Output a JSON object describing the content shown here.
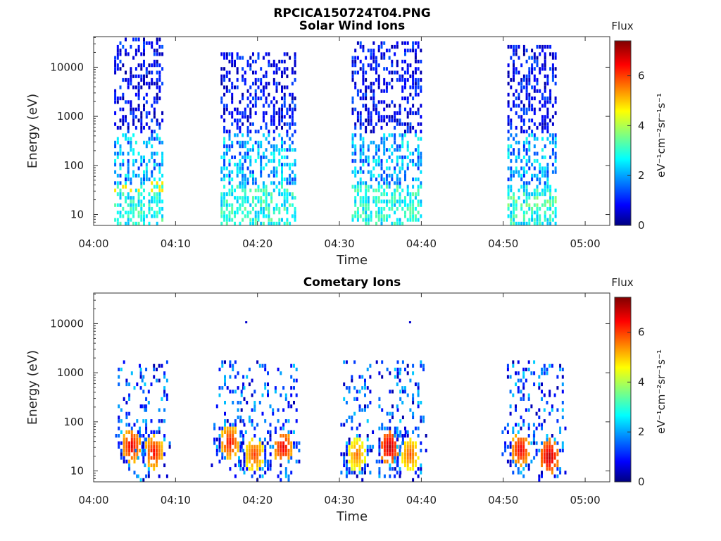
{
  "figure_title": "RPCICA150724T04.PNG",
  "colorbar": {
    "title": "Flux",
    "label": "eV⁻¹cm⁻²sr⁻¹s⁻¹",
    "ticks": [
      "0",
      "2",
      "4",
      "6"
    ],
    "range": [
      0,
      7.4
    ],
    "colormap": "jet"
  },
  "chart_data": [
    {
      "type": "heatmap",
      "title": "Solar Wind Ions",
      "xlabel": "Time",
      "ylabel": "Energy (eV)",
      "x_ticks": [
        "04:00",
        "04:10",
        "04:20",
        "04:30",
        "04:40",
        "04:50",
        "05:00"
      ],
      "y_ticks": [
        "10",
        "100",
        "1000",
        "10000"
      ],
      "y_scale": "log",
      "xlim": [
        "04:00",
        "05:03"
      ],
      "ylim": [
        6,
        42000
      ],
      "colorbar_title": "Flux",
      "colorbar_ticks": [
        "0",
        "2",
        "4",
        "6"
      ],
      "clusters": [
        {
          "start": "04:02.5",
          "end": "04:08.5",
          "e_min": 6,
          "e_max": 35000,
          "peak_flux": 4.8,
          "peak_energy": 35
        },
        {
          "start": "04:15.5",
          "end": "04:24.5",
          "e_min": 6,
          "e_max": 18000,
          "peak_flux": 3.2,
          "peak_energy": 10
        },
        {
          "start": "04:31.5",
          "end": "04:40.0",
          "e_min": 6,
          "e_max": 30000,
          "peak_flux": 3.4,
          "peak_energy": 10
        },
        {
          "start": "04:50.5",
          "end": "04:56.5",
          "e_min": 6,
          "e_max": 24000,
          "peak_flux": 3.8,
          "peak_energy": 18
        }
      ]
    },
    {
      "type": "heatmap",
      "title": "Cometary Ions",
      "xlabel": "Time",
      "ylabel": "Energy (eV)",
      "x_ticks": [
        "04:00",
        "04:10",
        "04:20",
        "04:30",
        "04:40",
        "04:50",
        "05:00"
      ],
      "y_ticks": [
        "10",
        "100",
        "1000",
        "10000"
      ],
      "y_scale": "log",
      "xlim": [
        "04:00",
        "05:03"
      ],
      "ylim": [
        6,
        42000
      ],
      "colorbar_title": "Flux",
      "colorbar_ticks": [
        "0",
        "2",
        "4",
        "6"
      ],
      "hotspots": [
        {
          "time": "04:04.5",
          "energy": 30,
          "flux": 6.8
        },
        {
          "time": "04:07.2",
          "energy": 22,
          "flux": 6.6
        },
        {
          "time": "04:16.5",
          "energy": 35,
          "flux": 6.6
        },
        {
          "time": "04:19.5",
          "energy": 20,
          "flux": 6.2
        },
        {
          "time": "04:23.0",
          "energy": 28,
          "flux": 6.8
        },
        {
          "time": "04:32.0",
          "energy": 20,
          "flux": 5.8
        },
        {
          "time": "04:36.0",
          "energy": 28,
          "flux": 7.2
        },
        {
          "time": "04:38.5",
          "energy": 20,
          "flux": 6.0
        },
        {
          "time": "04:52.0",
          "energy": 25,
          "flux": 6.8
        },
        {
          "time": "04:55.5",
          "energy": 18,
          "flux": 7.2
        }
      ],
      "isolated_points": [
        {
          "time": "04:18.5",
          "energy": 10500
        },
        {
          "time": "04:38.5",
          "energy": 10500
        }
      ]
    }
  ]
}
